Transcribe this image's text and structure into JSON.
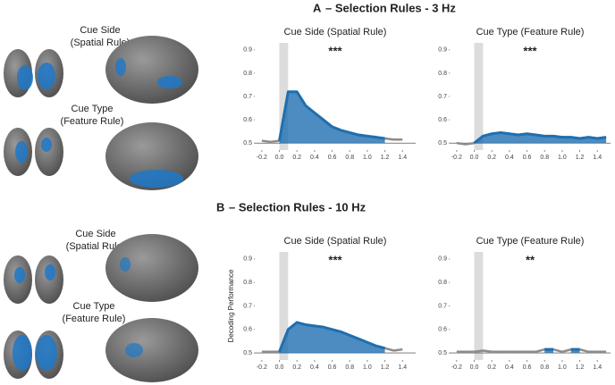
{
  "panels": [
    {
      "label": "A",
      "title": "– Selection Rules - 3 Hz"
    },
    {
      "label": "B",
      "title": "– Selection Rules - 10 Hz"
    }
  ],
  "brain_labels": [
    [
      "Cue Side",
      "(Spatial Rule)"
    ],
    [
      "Cue Type",
      "(Feature Rule)"
    ],
    [
      "Cue Side",
      "(Spatial Rule)"
    ],
    [
      "Cue Type",
      "(Feature Rule)"
    ]
  ],
  "chart_data": [
    {
      "type": "line",
      "title": "Cue Side (Spatial Rule)",
      "annotation": "***",
      "x": [
        -0.2,
        -0.1,
        0,
        0.1,
        0.2,
        0.3,
        0.4,
        0.5,
        0.6,
        0.7,
        0.8,
        0.9,
        1.0,
        1.1,
        1.2,
        1.3,
        1.4,
        1.5
      ],
      "series": [
        {
          "color": "#8c8c8c",
          "values": [
            0.51,
            0.505,
            0.51,
            0.72,
            0.72,
            0.66,
            0.63,
            0.6,
            0.57,
            0.555,
            0.545,
            0.535,
            0.53,
            0.525,
            0.52,
            0.515,
            0.515,
            null
          ]
        },
        {
          "color": "#1f6fb0",
          "values": [
            null,
            null,
            0.51,
            0.72,
            0.72,
            0.66,
            0.63,
            0.6,
            0.57,
            0.555,
            0.545,
            0.535,
            0.53,
            0.525,
            0.52,
            null,
            null,
            null
          ]
        }
      ],
      "shade": [
        0,
        0.1
      ],
      "hline": 0.5,
      "xlim": [
        -0.28,
        1.55
      ],
      "ylim": [
        0.47,
        0.93
      ],
      "xticks": [
        -0.2,
        {
          "value": 0,
          "label": "0.0"
        },
        0.2,
        0.4,
        0.6,
        0.8,
        {
          "value": 1,
          "label": "1.0"
        },
        1.2,
        1.4
      ],
      "yticks": [
        0.5,
        0.6,
        0.7,
        0.8,
        0.9
      ]
    },
    {
      "type": "line",
      "title": "Cue Type (Feature Rule)",
      "annotation": "***",
      "x": [
        -0.2,
        -0.1,
        0,
        0.1,
        0.2,
        0.3,
        0.4,
        0.5,
        0.6,
        0.7,
        0.8,
        0.9,
        1.0,
        1.1,
        1.2,
        1.3,
        1.4,
        1.5
      ],
      "series": [
        {
          "color": "#8c8c8c",
          "values": [
            0.5,
            0.495,
            0.5,
            0.53,
            0.54,
            0.545,
            0.54,
            0.535,
            0.54,
            0.535,
            0.53,
            0.53,
            0.525,
            0.525,
            0.52,
            0.525,
            0.52,
            0.525
          ]
        },
        {
          "color": "#1f6fb0",
          "values": [
            null,
            null,
            0.5,
            0.53,
            0.54,
            0.545,
            0.54,
            0.535,
            0.54,
            0.535,
            0.53,
            0.53,
            0.525,
            0.525,
            0.52,
            0.525,
            0.52,
            0.525
          ]
        }
      ],
      "shade": [
        0,
        0.1
      ],
      "hline": 0.5,
      "xlim": [
        -0.28,
        1.55
      ],
      "ylim": [
        0.47,
        0.93
      ],
      "xticks": [
        -0.2,
        {
          "value": 0,
          "label": "0.0"
        },
        0.2,
        0.4,
        0.6,
        0.8,
        {
          "value": 1,
          "label": "1.0"
        },
        1.2,
        1.4
      ],
      "yticks": [
        0.5,
        0.6,
        0.7,
        0.8,
        0.9
      ]
    },
    {
      "type": "line",
      "title": "Cue Side (Spatial Rule)",
      "annotation": "***",
      "ylabel": "Decoding Performance",
      "x": [
        -0.2,
        -0.1,
        0,
        0.1,
        0.2,
        0.3,
        0.4,
        0.5,
        0.6,
        0.7,
        0.8,
        0.9,
        1.0,
        1.1,
        1.2,
        1.3,
        1.4,
        1.5
      ],
      "series": [
        {
          "color": "#8c8c8c",
          "values": [
            0.505,
            0.505,
            0.505,
            0.6,
            0.63,
            0.62,
            0.615,
            0.61,
            0.6,
            0.59,
            0.575,
            0.56,
            0.545,
            0.53,
            0.52,
            0.51,
            0.515,
            null
          ]
        },
        {
          "color": "#1f6fb0",
          "values": [
            null,
            null,
            0.505,
            0.6,
            0.63,
            0.62,
            0.615,
            0.61,
            0.6,
            0.59,
            0.575,
            0.56,
            0.545,
            0.53,
            0.52,
            null,
            null,
            null
          ]
        }
      ],
      "shade": [
        0,
        0.1
      ],
      "hline": 0.5,
      "xlim": [
        -0.28,
        1.55
      ],
      "ylim": [
        0.47,
        0.93
      ],
      "xticks": [
        -0.2,
        {
          "value": 0,
          "label": "0.0"
        },
        0.2,
        0.4,
        0.6,
        0.8,
        {
          "value": 1,
          "label": "1.0"
        },
        1.2,
        1.4
      ],
      "yticks": [
        0.5,
        0.6,
        0.7,
        0.8,
        0.9
      ]
    },
    {
      "type": "line",
      "title": "Cue Type (Feature Rule)",
      "annotation": "**",
      "x": [
        -0.2,
        -0.1,
        0,
        0.1,
        0.2,
        0.3,
        0.4,
        0.5,
        0.6,
        0.7,
        0.8,
        0.9,
        1.0,
        1.1,
        1.2,
        1.3,
        1.4,
        1.5
      ],
      "series": [
        {
          "color": "#8c8c8c",
          "values": [
            0.505,
            0.505,
            0.505,
            0.51,
            0.505,
            0.505,
            0.505,
            0.505,
            0.505,
            0.505,
            0.515,
            0.515,
            0.505,
            0.515,
            0.515,
            0.505,
            0.505,
            0.505
          ]
        },
        {
          "color": "#1f6fb0",
          "values": [
            null,
            null,
            null,
            null,
            null,
            null,
            null,
            null,
            null,
            null,
            0.515,
            0.515,
            null,
            0.515,
            0.515,
            null,
            null,
            null
          ]
        }
      ],
      "shade": [
        0,
        0.1
      ],
      "hline": 0.5,
      "xlim": [
        -0.28,
        1.55
      ],
      "ylim": [
        0.47,
        0.93
      ],
      "xticks": [
        -0.2,
        {
          "value": 0,
          "label": "0.0"
        },
        0.2,
        0.4,
        0.6,
        0.8,
        {
          "value": 1,
          "label": "1.0"
        },
        1.2,
        1.4
      ],
      "yticks": [
        0.5,
        0.6,
        0.7,
        0.8,
        0.9
      ]
    }
  ]
}
